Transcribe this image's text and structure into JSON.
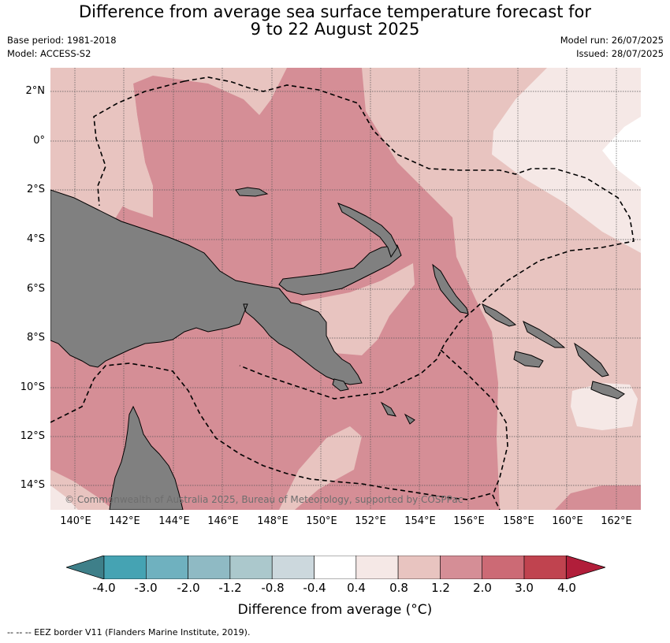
{
  "title_line1": "Difference from average sea surface temperature forecast for",
  "title_line2": "9 to 22 August 2025",
  "base_period": "Base period: 1981-2018",
  "model": "Model: ACCESS-S2",
  "model_run": "Model run: 26/07/2025",
  "issued": "Issued: 28/07/2025",
  "copyright": "© Commonwealth of Australia 2025, Bureau of Meteorology, supported by COSPPac",
  "lat_labels": [
    "2°N",
    "0°",
    "2°S",
    "4°S",
    "6°S",
    "8°S",
    "10°S",
    "12°S",
    "14°S"
  ],
  "lon_labels": [
    "140°E",
    "142°E",
    "144°E",
    "146°E",
    "148°E",
    "150°E",
    "152°E",
    "154°E",
    "156°E",
    "158°E",
    "160°E",
    "162°E"
  ],
  "colorbar_ticks": [
    "-4.0",
    "-3.0",
    "-2.0",
    "-1.2",
    "-0.8",
    "-0.4",
    "0.4",
    "0.8",
    "1.2",
    "2.0",
    "3.0",
    "4.0"
  ],
  "colorbar_colors": [
    "#45a3b3",
    "#6fb1bf",
    "#8fbac4",
    "#abc8cc",
    "#ccd8dd",
    "#ffffff",
    "#f5e8e6",
    "#e8c4c0",
    "#d58e96",
    "#cc6a75",
    "#c0434f"
  ],
  "colorbar_under_color": "#3e7f89",
  "colorbar_over_color": "#b11e3a",
  "land_color": "#808080",
  "colorbar_label": "Difference from average (°C)",
  "footnote": "-- -- -- EEZ border V11 (Flanders Marine Institute, 2019)."
}
